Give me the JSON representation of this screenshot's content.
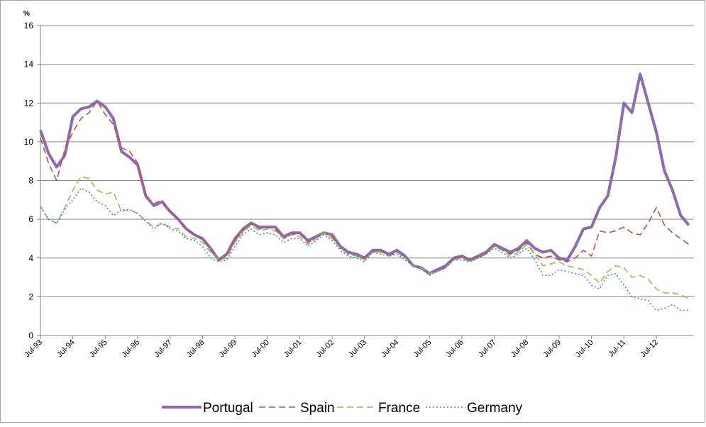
{
  "chart_data": {
    "type": "line",
    "y_label": "%",
    "categories": [
      "Jul-93",
      null,
      null,
      null,
      "Jul-94",
      null,
      null,
      null,
      "Jul-95",
      null,
      null,
      null,
      "Jul-96",
      null,
      null,
      null,
      "Jul-97",
      null,
      null,
      null,
      "Jul-98",
      null,
      null,
      null,
      "Jul-99",
      null,
      null,
      null,
      "Jul-00",
      null,
      null,
      null,
      "Jul-01",
      null,
      null,
      null,
      "Jul-02",
      null,
      null,
      null,
      "Jul-03",
      null,
      null,
      null,
      "Jul-04",
      null,
      null,
      null,
      "Jul-05",
      null,
      null,
      null,
      "Jul-06",
      null,
      null,
      null,
      "Jul-07",
      null,
      null,
      null,
      "Jul-08",
      null,
      null,
      null,
      "Jul-09",
      null,
      null,
      null,
      "Jul-10",
      null,
      null,
      null,
      "Jul-11",
      null,
      null,
      null,
      "Jul-12",
      null,
      null,
      null,
      null
    ],
    "series": [
      {
        "name": "Portugal",
        "color": "#8c6bb1",
        "dash": "solid",
        "values": [
          10.6,
          9.4,
          8.7,
          9.3,
          11.3,
          11.7,
          11.8,
          12.1,
          11.8,
          11.2,
          9.5,
          9.2,
          8.8,
          7.2,
          6.7,
          6.9,
          6.4,
          6.0,
          5.5,
          5.2,
          5.0,
          4.5,
          3.9,
          4.2,
          5.0,
          5.5,
          5.8,
          5.6,
          5.6,
          5.6,
          5.1,
          5.3,
          5.3,
          4.9,
          5.1,
          5.3,
          5.2,
          4.6,
          4.3,
          4.2,
          4.0,
          4.4,
          4.4,
          4.2,
          4.4,
          4.1,
          3.6,
          3.5,
          3.2,
          3.4,
          3.6,
          4.0,
          4.1,
          3.9,
          4.1,
          4.3,
          4.7,
          4.5,
          4.3,
          4.5,
          4.9,
          4.5,
          4.3,
          4.4,
          4.0,
          3.9,
          4.6,
          5.5,
          5.6,
          6.6,
          7.2,
          9.2,
          12.0,
          11.5,
          13.5,
          12.0,
          10.5,
          8.5,
          7.5,
          6.2,
          5.7
        ]
      },
      {
        "name": "Spain",
        "color": "#c0504d",
        "dash": "dashed",
        "values": [
          10.2,
          8.9,
          8.0,
          9.6,
          10.5,
          11.2,
          11.5,
          12.1,
          11.4,
          10.9,
          9.7,
          9.5,
          8.9,
          7.2,
          6.8,
          7.0,
          6.4,
          6.0,
          5.5,
          5.2,
          5.0,
          4.4,
          3.9,
          4.2,
          4.9,
          5.4,
          5.8,
          5.5,
          5.6,
          5.5,
          5.0,
          5.2,
          5.3,
          4.8,
          5.0,
          5.3,
          5.1,
          4.5,
          4.2,
          4.1,
          4.0,
          4.3,
          4.4,
          4.1,
          4.3,
          4.0,
          3.6,
          3.5,
          3.2,
          3.3,
          3.5,
          4.0,
          4.1,
          3.9,
          4.1,
          4.3,
          4.6,
          4.4,
          4.2,
          4.4,
          4.8,
          4.2,
          4.0,
          4.1,
          3.9,
          3.8,
          4.0,
          4.4,
          4.1,
          5.4,
          5.3,
          5.4,
          5.6,
          5.3,
          5.2,
          5.8,
          6.6,
          5.7,
          5.3,
          5.0,
          4.7
        ]
      },
      {
        "name": "France",
        "color": "#9bbb59",
        "dash": "dashed",
        "values": [
          6.7,
          6.0,
          5.8,
          6.6,
          7.5,
          8.2,
          8.1,
          7.5,
          7.3,
          7.4,
          6.4,
          6.5,
          6.3,
          5.9,
          5.6,
          5.8,
          5.6,
          5.5,
          5.1,
          5.0,
          4.8,
          4.3,
          3.9,
          4.0,
          4.8,
          5.3,
          5.7,
          5.4,
          5.5,
          5.4,
          5.0,
          5.2,
          5.1,
          4.7,
          5.0,
          5.3,
          5.0,
          4.5,
          4.2,
          4.1,
          3.9,
          4.3,
          4.3,
          4.1,
          4.3,
          4.0,
          3.6,
          3.5,
          3.2,
          3.3,
          3.5,
          3.9,
          4.0,
          3.8,
          4.0,
          4.2,
          4.6,
          4.4,
          4.1,
          4.3,
          4.7,
          4.2,
          3.6,
          3.7,
          3.8,
          3.6,
          3.5,
          3.4,
          3.1,
          2.7,
          3.3,
          3.6,
          3.5,
          3.0,
          3.1,
          2.9,
          2.4,
          2.2,
          2.2,
          2.1,
          1.9
        ]
      },
      {
        "name": "Germany",
        "color": "#4f81bd",
        "dash": "dotted",
        "values": [
          6.6,
          6.0,
          5.8,
          6.5,
          7.0,
          7.6,
          7.4,
          6.9,
          6.7,
          6.2,
          6.5,
          6.5,
          6.3,
          5.9,
          5.5,
          5.8,
          5.5,
          5.4,
          5.0,
          4.9,
          4.6,
          4.0,
          3.8,
          3.9,
          4.6,
          5.2,
          5.5,
          5.2,
          5.3,
          5.2,
          4.8,
          5.0,
          5.0,
          4.6,
          4.9,
          5.2,
          4.9,
          4.4,
          4.1,
          4.0,
          3.8,
          4.3,
          4.2,
          4.1,
          4.2,
          3.9,
          3.6,
          3.4,
          3.1,
          3.3,
          3.5,
          3.9,
          3.9,
          3.8,
          4.0,
          4.2,
          4.5,
          4.3,
          4.0,
          4.2,
          4.5,
          3.9,
          3.1,
          3.1,
          3.4,
          3.3,
          3.2,
          3.1,
          2.6,
          2.4,
          3.1,
          3.2,
          2.6,
          2.0,
          1.9,
          1.8,
          1.3,
          1.4,
          1.6,
          1.3,
          1.3
        ]
      }
    ],
    "ylim": [
      0,
      16
    ],
    "yticks": [
      0,
      2,
      4,
      6,
      8,
      10,
      12,
      14,
      16
    ],
    "grid": true,
    "legend": "bottom"
  }
}
